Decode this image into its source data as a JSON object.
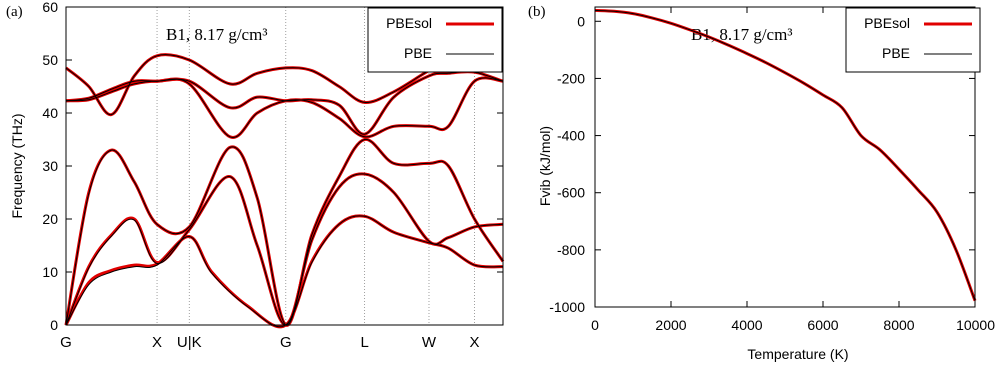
{
  "colors": {
    "pbesol": "#e00000",
    "pbe": "#000000",
    "axis": "#000000",
    "grid": "#888888"
  },
  "chart_data": [
    {
      "panel_label": "(a)",
      "type": "line",
      "title": "B1, 8.17 g/cm³",
      "xlabel": "",
      "ylabel": "Frequency (THz)",
      "ylim": [
        0,
        60
      ],
      "yticks": [
        "0",
        "10",
        "20",
        "30",
        "40",
        "50",
        "60"
      ],
      "high_symmetry_points": [
        {
          "label": "G",
          "x": 0
        },
        {
          "label": "X",
          "x": 1
        },
        {
          "label": "U|K",
          "x": 1.354
        },
        {
          "label": "G",
          "x": 2.414
        },
        {
          "label": "L",
          "x": 3.28
        },
        {
          "label": "W",
          "x": 3.987
        },
        {
          "label": "X",
          "x": 4.487
        }
      ],
      "xlim": [
        0,
        4.8
      ],
      "vertical_gridlines_at": [
        1,
        1.354,
        2.414,
        3.28,
        3.987,
        4.487
      ],
      "legend": {
        "position": "top-right",
        "entries": [
          "PBEsol",
          "PBE"
        ]
      },
      "series": [
        {
          "name": "PBEsol",
          "color": "#e00000",
          "bands": [
            [
              [
                0,
                0
              ],
              [
                0.25,
                8
              ],
              [
                0.5,
                10.3
              ],
              [
                0.75,
                11.3
              ],
              [
                1,
                11.5
              ],
              [
                1.354,
                16.7
              ],
              [
                1.6,
                10
              ],
              [
                2,
                3.5
              ],
              [
                2.414,
                0
              ],
              [
                2.7,
                12
              ],
              [
                3.0,
                19
              ],
              [
                3.28,
                20.5
              ],
              [
                3.6,
                17.5
              ],
              [
                3.987,
                15.5
              ],
              [
                4.2,
                14.5
              ],
              [
                4.487,
                11.3
              ],
              [
                4.8,
                11
              ]
            ],
            [
              [
                0,
                0
              ],
              [
                0.25,
                11
              ],
              [
                0.5,
                17
              ],
              [
                0.75,
                20
              ],
              [
                1,
                11.8
              ],
              [
                1.354,
                18
              ],
              [
                1.8,
                28
              ],
              [
                2.1,
                15
              ],
              [
                2.414,
                0
              ],
              [
                2.7,
                16
              ],
              [
                3.0,
                26
              ],
              [
                3.28,
                28.5
              ],
              [
                3.6,
                25
              ],
              [
                3.987,
                15.8
              ],
              [
                4.2,
                16.5
              ],
              [
                4.487,
                18.5
              ],
              [
                4.8,
                19
              ]
            ],
            [
              [
                0,
                0
              ],
              [
                0.25,
                25
              ],
              [
                0.5,
                33
              ],
              [
                0.75,
                27
              ],
              [
                1,
                19
              ],
              [
                1.354,
                18.5
              ],
              [
                1.8,
                33.5
              ],
              [
                2.1,
                24
              ],
              [
                2.414,
                0
              ],
              [
                2.7,
                17
              ],
              [
                3.0,
                28
              ],
              [
                3.28,
                35
              ],
              [
                3.6,
                30.5
              ],
              [
                3.987,
                30.5
              ],
              [
                4.2,
                30
              ],
              [
                4.487,
                20
              ],
              [
                4.8,
                12
              ]
            ],
            [
              [
                0,
                42.3
              ],
              [
                0.25,
                42.5
              ],
              [
                0.5,
                44
              ],
              [
                0.75,
                45.5
              ],
              [
                1,
                46
              ],
              [
                1.354,
                45.5
              ],
              [
                1.8,
                35.5
              ],
              [
                2.1,
                40
              ],
              [
                2.414,
                42.3
              ],
              [
                2.7,
                42
              ],
              [
                3.0,
                39
              ],
              [
                3.28,
                35.5
              ],
              [
                3.6,
                37.5
              ],
              [
                3.987,
                37.5
              ],
              [
                4.2,
                37.5
              ],
              [
                4.487,
                46
              ],
              [
                4.8,
                46
              ]
            ],
            [
              [
                0,
                42.3
              ],
              [
                0.25,
                42.8
              ],
              [
                0.5,
                44.5
              ],
              [
                0.75,
                46
              ],
              [
                1,
                46
              ],
              [
                1.354,
                46
              ],
              [
                1.8,
                41
              ],
              [
                2.1,
                43
              ],
              [
                2.414,
                42.3
              ],
              [
                2.7,
                42.5
              ],
              [
                3.0,
                41.5
              ],
              [
                3.28,
                36
              ],
              [
                3.6,
                43
              ],
              [
                3.987,
                47
              ],
              [
                4.2,
                47.5
              ],
              [
                4.487,
                47.7
              ],
              [
                4.8,
                46
              ]
            ],
            [
              [
                0,
                48.5
              ],
              [
                0.25,
                45
              ],
              [
                0.5,
                39.7
              ],
              [
                0.75,
                47
              ],
              [
                1,
                50.8
              ],
              [
                1.354,
                50
              ],
              [
                1.8,
                45.5
              ],
              [
                2.1,
                47.5
              ],
              [
                2.414,
                48.5
              ],
              [
                2.7,
                48
              ],
              [
                3.0,
                45
              ],
              [
                3.28,
                42
              ],
              [
                3.6,
                44
              ],
              [
                3.987,
                48
              ],
              [
                4.2,
                49.5
              ],
              [
                4.487,
                50.8
              ],
              [
                4.8,
                50.8
              ]
            ]
          ]
        },
        {
          "name": "PBE",
          "color": "#000000",
          "bands": [
            [
              [
                0,
                0
              ],
              [
                0.25,
                7.6
              ],
              [
                0.5,
                10
              ],
              [
                0.75,
                11
              ],
              [
                1,
                11.3
              ],
              [
                1.354,
                16.7
              ],
              [
                1.6,
                9.8
              ],
              [
                2,
                3.4
              ],
              [
                2.414,
                0
              ],
              [
                2.7,
                11.8
              ],
              [
                3.0,
                19
              ],
              [
                3.28,
                20.5
              ],
              [
                3.6,
                17.5
              ],
              [
                3.987,
                15.5
              ],
              [
                4.2,
                14.5
              ],
              [
                4.487,
                11.3
              ],
              [
                4.8,
                11
              ]
            ],
            [
              [
                0,
                0
              ],
              [
                0.25,
                10.8
              ],
              [
                0.5,
                16.8
              ],
              [
                0.75,
                19.8
              ],
              [
                1,
                11.6
              ],
              [
                1.354,
                18
              ],
              [
                1.8,
                28
              ],
              [
                2.1,
                15
              ],
              [
                2.414,
                0
              ],
              [
                2.7,
                16
              ],
              [
                3.0,
                26
              ],
              [
                3.28,
                28.5
              ],
              [
                3.6,
                25
              ],
              [
                3.987,
                15.8
              ],
              [
                4.2,
                16.5
              ],
              [
                4.487,
                18.5
              ],
              [
                4.8,
                19
              ]
            ],
            [
              [
                0,
                0
              ],
              [
                0.25,
                24.8
              ],
              [
                0.5,
                33
              ],
              [
                0.75,
                27
              ],
              [
                1,
                19
              ],
              [
                1.354,
                18.5
              ],
              [
                1.8,
                33.5
              ],
              [
                2.1,
                24
              ],
              [
                2.414,
                0
              ],
              [
                2.7,
                17
              ],
              [
                3.0,
                28
              ],
              [
                3.28,
                35
              ],
              [
                3.6,
                30.5
              ],
              [
                3.987,
                30.5
              ],
              [
                4.2,
                30
              ],
              [
                4.487,
                20
              ],
              [
                4.8,
                12
              ]
            ],
            [
              [
                0,
                42.3
              ],
              [
                0.25,
                42.5
              ],
              [
                0.5,
                44
              ],
              [
                0.75,
                45.5
              ],
              [
                1,
                46
              ],
              [
                1.354,
                45.5
              ],
              [
                1.8,
                35.5
              ],
              [
                2.1,
                40
              ],
              [
                2.414,
                42.3
              ],
              [
                2.7,
                42
              ],
              [
                3.0,
                39
              ],
              [
                3.28,
                35.5
              ],
              [
                3.6,
                37.5
              ],
              [
                3.987,
                37.5
              ],
              [
                4.2,
                37.5
              ],
              [
                4.487,
                46
              ],
              [
                4.8,
                46
              ]
            ],
            [
              [
                0,
                42.3
              ],
              [
                0.25,
                42.8
              ],
              [
                0.5,
                44.5
              ],
              [
                0.75,
                46
              ],
              [
                1,
                46
              ],
              [
                1.354,
                46
              ],
              [
                1.8,
                41
              ],
              [
                2.1,
                43
              ],
              [
                2.414,
                42.3
              ],
              [
                2.7,
                42.5
              ],
              [
                3.0,
                41.5
              ],
              [
                3.28,
                36
              ],
              [
                3.6,
                43
              ],
              [
                3.987,
                47
              ],
              [
                4.2,
                47.5
              ],
              [
                4.487,
                47.7
              ],
              [
                4.8,
                46
              ]
            ],
            [
              [
                0,
                48.5
              ],
              [
                0.25,
                45
              ],
              [
                0.5,
                39.7
              ],
              [
                0.75,
                47
              ],
              [
                1,
                50.8
              ],
              [
                1.354,
                50
              ],
              [
                1.8,
                45.5
              ],
              [
                2.1,
                47.5
              ],
              [
                2.414,
                48.5
              ],
              [
                2.7,
                48
              ],
              [
                3.0,
                45
              ],
              [
                3.28,
                42
              ],
              [
                3.6,
                44
              ],
              [
                3.987,
                48
              ],
              [
                4.2,
                49.5
              ],
              [
                4.487,
                50.8
              ],
              [
                4.8,
                50.8
              ]
            ]
          ]
        }
      ]
    },
    {
      "panel_label": "(b)",
      "type": "line",
      "title": "B1, 8.17 g/cm³",
      "xlabel": "Temperature (K)",
      "ylabel": "Fvib (kJ/mol)",
      "xlim": [
        0,
        10000
      ],
      "ylim": [
        -1000,
        50
      ],
      "xticks": [
        0,
        2000,
        4000,
        6000,
        8000,
        10000
      ],
      "yticks": [
        0,
        -200,
        -400,
        -600,
        -800,
        -1000
      ],
      "legend": {
        "position": "top-right",
        "entries": [
          "PBEsol",
          "PBE"
        ]
      },
      "series": [
        {
          "name": "PBEsol",
          "color": "#e00000",
          "x": [
            0,
            500,
            1000,
            1500,
            2000,
            2500,
            3000,
            3500,
            4000,
            4500,
            5000,
            5500,
            6000,
            6500,
            7000,
            7500,
            8000,
            8500,
            9000,
            9500,
            10000
          ],
          "y": [
            38,
            35,
            27,
            12,
            -7,
            -30,
            -55,
            -83,
            -113,
            -145,
            -180,
            -217,
            -258,
            -302,
            -400,
            -450,
            -518,
            -590,
            -668,
            -800,
            -978
          ]
        },
        {
          "name": "PBE",
          "color": "#000000",
          "x": [
            0,
            500,
            1000,
            1500,
            2000,
            2500,
            3000,
            3500,
            4000,
            4500,
            5000,
            5500,
            6000,
            6500,
            7000,
            7500,
            8000,
            8500,
            9000,
            9500,
            10000
          ],
          "y": [
            38,
            35,
            27,
            12,
            -7,
            -30,
            -55,
            -83,
            -113,
            -145,
            -180,
            -217,
            -258,
            -302,
            -400,
            -450,
            -518,
            -590,
            -668,
            -800,
            -978
          ]
        }
      ]
    }
  ]
}
